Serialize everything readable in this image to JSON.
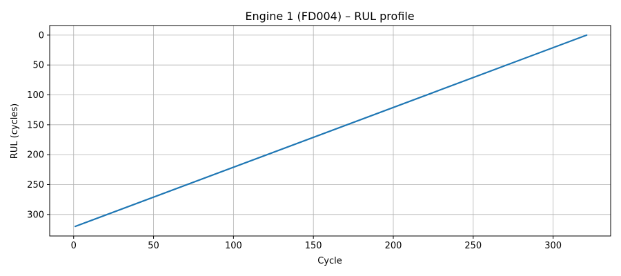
{
  "chart_data": {
    "type": "line",
    "title": "Engine 1 (FD004) –  RUL profile",
    "xlabel": "Cycle",
    "ylabel": "RUL (cycles)",
    "xlim": [
      -15,
      336
    ],
    "ylim": [
      336,
      -16
    ],
    "y_inverted": true,
    "grid": true,
    "x_ticks": [
      0,
      50,
      100,
      150,
      200,
      250,
      300
    ],
    "y_ticks": [
      0,
      50,
      100,
      150,
      200,
      250,
      300
    ],
    "series": [
      {
        "color": "#1f77b4",
        "x": [
          1,
          321
        ],
        "y": [
          320,
          0
        ]
      }
    ]
  }
}
